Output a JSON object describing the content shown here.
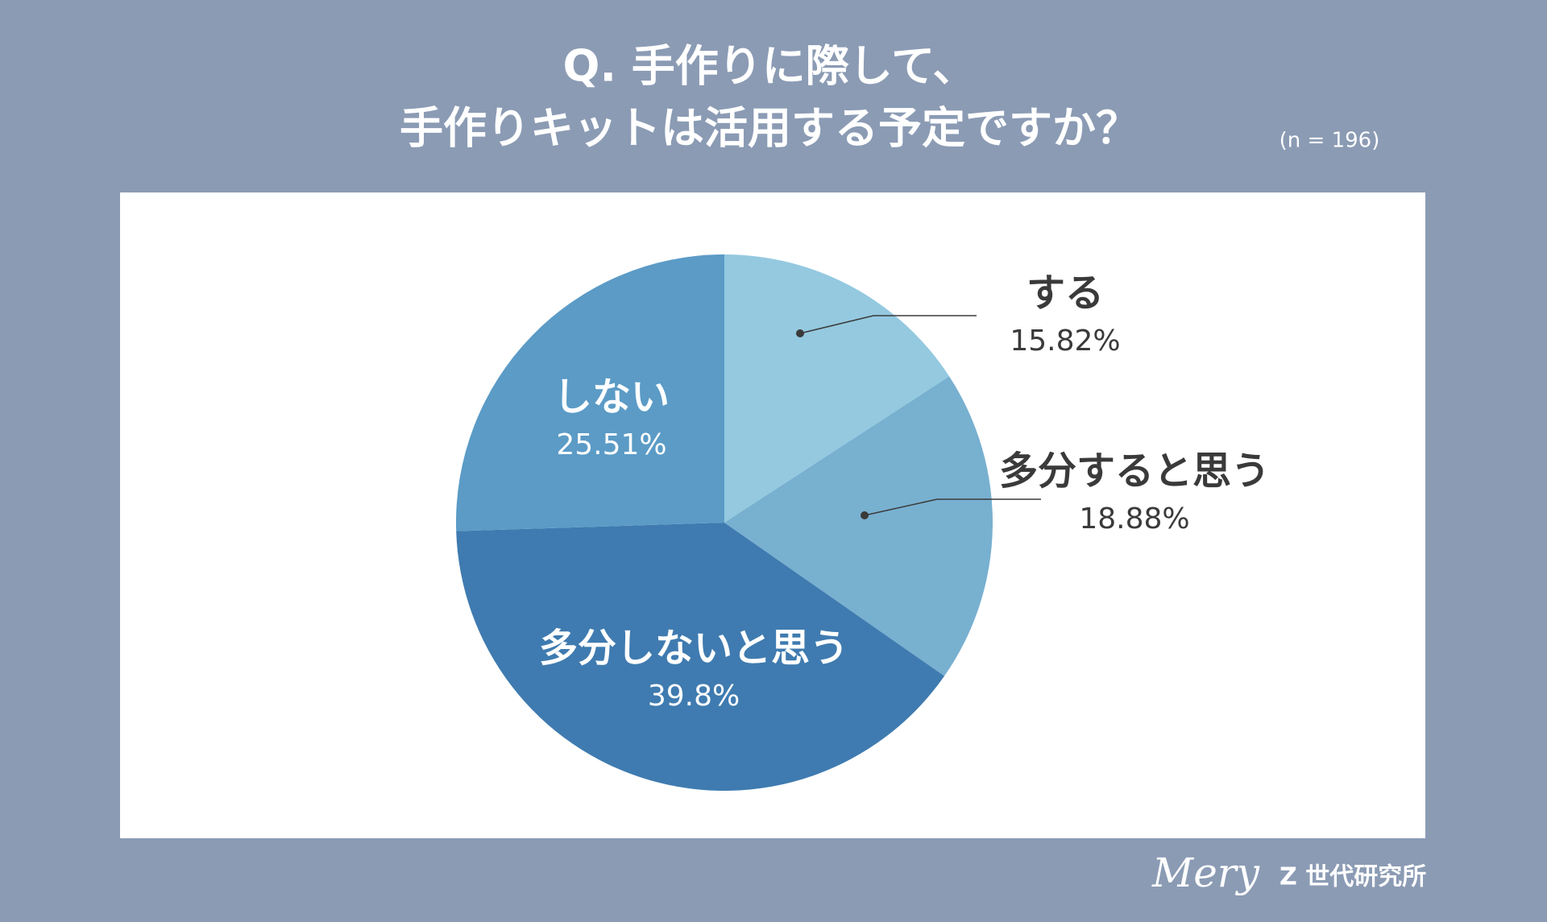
{
  "chart_data": {
    "type": "pie",
    "title_lines": [
      "Q. 手作りに際して、",
      "手作りキットは活用する予定ですか？"
    ],
    "note": "(n = 196)",
    "categories": [
      "する",
      "多分すると思う",
      "多分しないと思う",
      "しない"
    ],
    "values": [
      15.82,
      18.88,
      39.8,
      25.51
    ],
    "value_labels": [
      "15.82%",
      "18.88%",
      "39.8%",
      "25.51%"
    ],
    "colors": [
      "#94c9e0",
      "#78b0d0",
      "#3f7bb0",
      "#5b9bc6"
    ]
  },
  "branding": {
    "logo": "Mery",
    "name": "Z 世代研究所"
  }
}
